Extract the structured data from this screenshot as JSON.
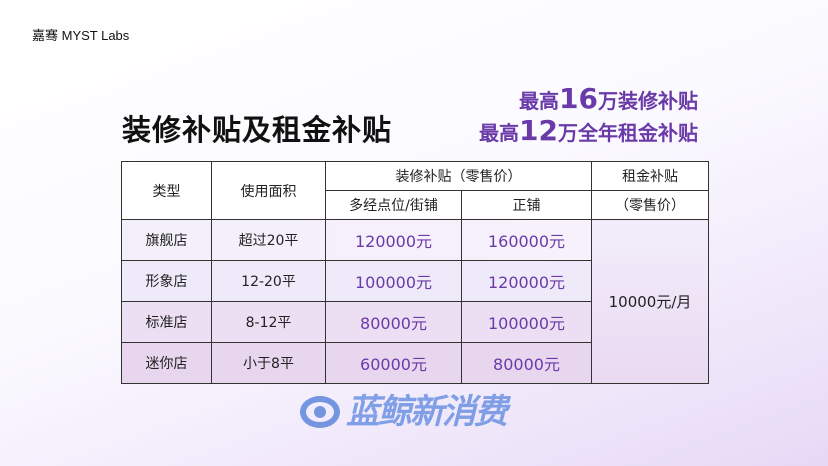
{
  "brand": "嘉骞 MYST Labs",
  "title": "装修补贴及租金补贴",
  "headline": [
    {
      "pre": "最高",
      "num": "16",
      "post": "万装修补贴"
    },
    {
      "pre": "最高",
      "num": "12",
      "post": "万全年租金补贴"
    }
  ],
  "table": {
    "headers": {
      "type": "类型",
      "area": "使用面积",
      "renovation": "装修补贴（零售价）",
      "multi": "多经点位/街铺",
      "main": "正铺",
      "rent_line1": "租金补贴",
      "rent_line2": "（零售价）"
    },
    "rows": [
      {
        "type": "旗舰店",
        "area": "超过20平",
        "multi": "120000元",
        "main": "160000元"
      },
      {
        "type": "形象店",
        "area": "12-20平",
        "multi": "100000元",
        "main": "120000元"
      },
      {
        "type": "标准店",
        "area": "8-12平",
        "multi": "80000元",
        "main": "100000元"
      },
      {
        "type": "迷你店",
        "area": "小于8平",
        "multi": "60000元",
        "main": "80000元"
      }
    ],
    "rent": "10000元/月"
  },
  "watermark": "蓝鲸新消费",
  "colors": {
    "accent": "#6a3aa8"
  }
}
